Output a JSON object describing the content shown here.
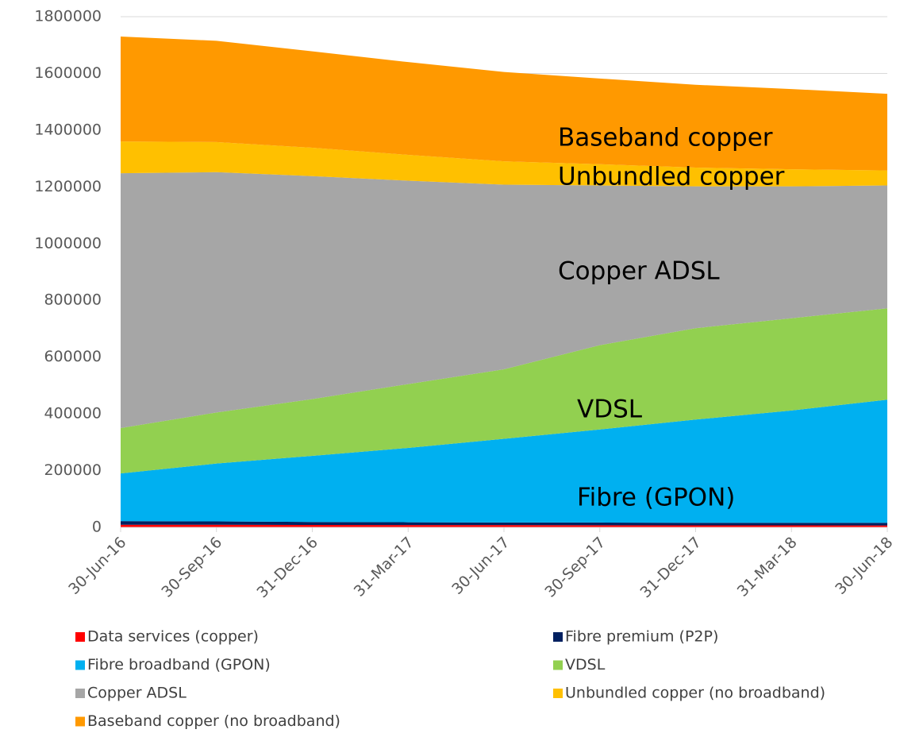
{
  "chart_data": {
    "type": "stacked_area",
    "categories": [
      "30-Jun-16",
      "30-Sep-16",
      "31-Dec-16",
      "31-Mar-17",
      "30-Jun-17",
      "30-Sep-17",
      "31-Dec-17",
      "31-Mar-18",
      "30-Jun-18"
    ],
    "series": [
      {
        "name": "Data services (copper)",
        "color": "#ff0000",
        "values": [
          9000,
          9000,
          8500,
          8000,
          8000,
          7500,
          7000,
          7000,
          6500
        ]
      },
      {
        "name": "Fibre premium (P2P)",
        "color": "#002060",
        "values": [
          13000,
          12000,
          10500,
          10000,
          9000,
          9500,
          9000,
          9000,
          9500
        ]
      },
      {
        "name": "Fibre broadband (GPON)",
        "color": "#00b0f0",
        "values": [
          168000,
          204000,
          233000,
          262000,
          295000,
          328000,
          364000,
          396000,
          434000
        ]
      },
      {
        "name": "VDSL",
        "color": "#92d050",
        "values": [
          160000,
          180000,
          200000,
          225000,
          245000,
          297000,
          322000,
          325000,
          322000
        ]
      },
      {
        "name": "Copper ADSL",
        "color": "#a6a6a6",
        "values": [
          898000,
          847000,
          786000,
          717000,
          651000,
          563000,
          500000,
          465000,
          433000
        ]
      },
      {
        "name": "Unbundled copper (no broadband)",
        "color": "#ffc000",
        "values": [
          112000,
          106000,
          100000,
          91000,
          82000,
          75000,
          66000,
          60000,
          53000
        ]
      },
      {
        "name": "Baseband copper (no broadband)",
        "color": "#ff9900",
        "values": [
          370000,
          357000,
          340000,
          327000,
          315000,
          302000,
          292000,
          283000,
          270000
        ]
      }
    ],
    "annotations": [
      "Baseband copper",
      "Unbundled copper",
      "Copper ADSL",
      "VDSL",
      "Fibre (GPON)"
    ],
    "ylim": [
      0,
      1800000
    ],
    "yticks": [
      0,
      200000,
      400000,
      600000,
      800000,
      1000000,
      1200000,
      1400000,
      1600000,
      1800000
    ],
    "grid": true
  }
}
